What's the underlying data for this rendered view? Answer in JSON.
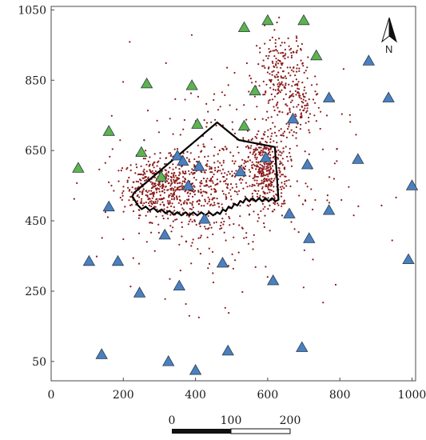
{
  "chart_data": {
    "type": "scatter",
    "title": "",
    "xlabel": "",
    "ylabel": "",
    "xlim": [
      0,
      1010
    ],
    "ylim": [
      -5,
      1060
    ],
    "x_ticks": [
      0,
      200,
      400,
      600,
      800,
      1000
    ],
    "y_ticks": [
      50,
      250,
      450,
      650,
      850,
      1050
    ],
    "x_tick_labels": [
      "0",
      "200",
      "400",
      "600",
      "800",
      "1000"
    ],
    "y_tick_labels": [
      "50",
      "250",
      "450",
      "650",
      "850",
      "1050"
    ],
    "grid": false,
    "legend": "none",
    "colors": {
      "green_marker": "#5db44a",
      "blue_marker": "#4a80c0",
      "dots": "#8b1a1a",
      "outline": "#000000"
    },
    "series": [
      {
        "marker": "green-triangle",
        "points": [
          [
            75,
            600
          ],
          [
            160,
            705
          ],
          [
            250,
            645
          ],
          [
            265,
            840
          ],
          [
            305,
            575
          ],
          [
            390,
            835
          ],
          [
            405,
            725
          ],
          [
            535,
            1000
          ],
          [
            535,
            720
          ],
          [
            565,
            820
          ],
          [
            600,
            1020
          ],
          [
            700,
            1020
          ],
          [
            735,
            920
          ]
        ]
      },
      {
        "marker": "blue-triangle",
        "points": [
          [
            105,
            335
          ],
          [
            140,
            70
          ],
          [
            160,
            490
          ],
          [
            185,
            335
          ],
          [
            245,
            245
          ],
          [
            315,
            410
          ],
          [
            325,
            50
          ],
          [
            350,
            635
          ],
          [
            355,
            265
          ],
          [
            365,
            620
          ],
          [
            380,
            550
          ],
          [
            400,
            25
          ],
          [
            410,
            605
          ],
          [
            425,
            455
          ],
          [
            475,
            330
          ],
          [
            490,
            80
          ],
          [
            525,
            590
          ],
          [
            595,
            630
          ],
          [
            615,
            280
          ],
          [
            660,
            470
          ],
          [
            670,
            740
          ],
          [
            695,
            90
          ],
          [
            710,
            610
          ],
          [
            715,
            400
          ],
          [
            770,
            480
          ],
          [
            770,
            800
          ],
          [
            850,
            625
          ],
          [
            880,
            905
          ],
          [
            935,
            800
          ],
          [
            990,
            340
          ],
          [
            1000,
            550
          ]
        ]
      },
      {
        "marker": "red-dot",
        "clusters": [
          {
            "cx": 290,
            "cy": 550,
            "sx": 45,
            "sy": 40,
            "n": 330
          },
          {
            "cx": 390,
            "cy": 530,
            "sx": 55,
            "sy": 55,
            "n": 220
          },
          {
            "cx": 595,
            "cy": 600,
            "sx": 30,
            "sy": 55,
            "n": 360
          },
          {
            "cx": 470,
            "cy": 560,
            "sx": 70,
            "sy": 60,
            "n": 150
          },
          {
            "cx": 640,
            "cy": 860,
            "sx": 35,
            "sy": 70,
            "n": 230
          },
          {
            "cx": 690,
            "cy": 770,
            "sx": 25,
            "sy": 50,
            "n": 80
          },
          {
            "cx": 470,
            "cy": 560,
            "sx": 170,
            "sy": 160,
            "n": 330
          }
        ]
      },
      {
        "marker": "polygon-outline",
        "points": [
          [
            230,
            530
          ],
          [
            460,
            730
          ],
          [
            520,
            680
          ],
          [
            620,
            660
          ],
          [
            630,
            510
          ],
          [
            540,
            510
          ],
          [
            460,
            470
          ],
          [
            350,
            470
          ],
          [
            240,
            490
          ],
          [
            225,
            520
          ]
        ]
      }
    ]
  },
  "north_arrow": {
    "label": "N",
    "icon": "north-arrow-icon"
  },
  "scale_bar": {
    "labels": [
      "0",
      "100",
      "200"
    ]
  }
}
